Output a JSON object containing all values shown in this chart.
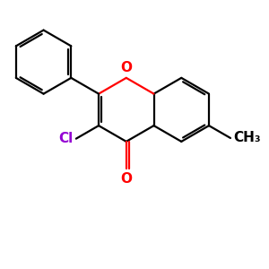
{
  "bg_color": "#ffffff",
  "bond_color": "#000000",
  "oxygen_color": "#ff0000",
  "chlorine_color": "#9400d3",
  "bond_width": 1.6,
  "figsize": [
    3.0,
    3.0
  ],
  "dpi": 100,
  "xlim": [
    0,
    10
  ],
  "ylim": [
    0,
    10
  ]
}
